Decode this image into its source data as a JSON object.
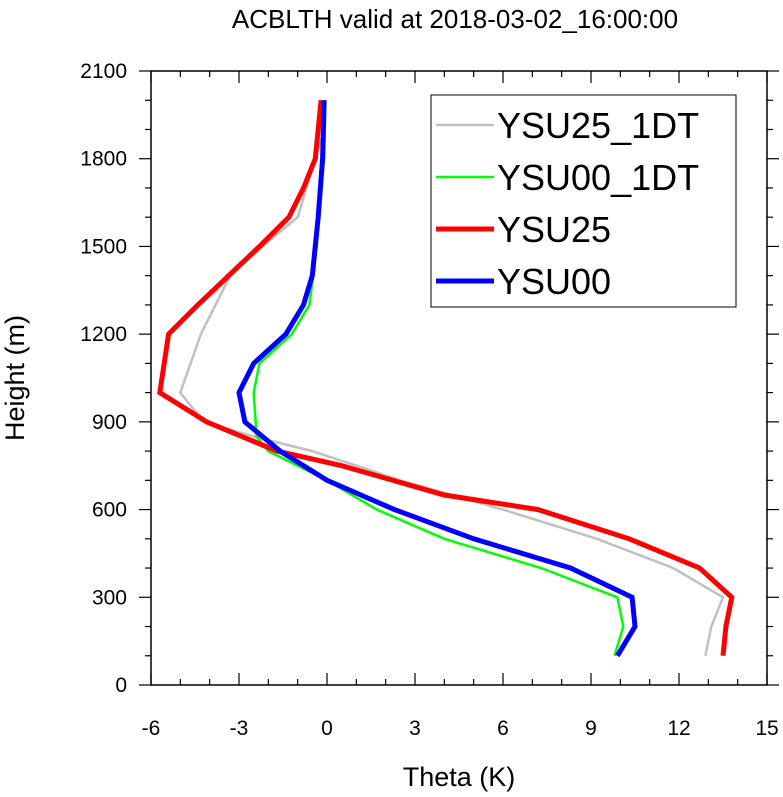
{
  "chart_data": {
    "type": "line",
    "title": "ACBLTH valid at 2018-03-02_16:00:00",
    "xlabel": "Theta (K)",
    "ylabel": "Height (m)",
    "xlim": [
      -6,
      15
    ],
    "ylim": [
      0,
      2100
    ],
    "xticks": [
      -6,
      -3,
      0,
      3,
      6,
      9,
      12,
      15
    ],
    "yticks": [
      0,
      300,
      600,
      900,
      1200,
      1500,
      1800,
      2100
    ],
    "x_minor_step": 1,
    "y_minor_step": 100,
    "legend_position": "top-right",
    "series": [
      {
        "name": "YSU25_1DT",
        "color": "#c0c0c0",
        "width": "thin",
        "x": [
          12.9,
          13.1,
          13.5,
          11.8,
          9.2,
          6.0,
          2.5,
          -0.5,
          -2.5,
          -4.2,
          -5.0,
          -4.3,
          -3.3,
          -2.2,
          -1.0,
          -0.4,
          -0.1,
          -0.05
        ],
        "y": [
          100,
          200,
          300,
          400,
          500,
          600,
          700,
          800,
          850,
          900,
          1000,
          1200,
          1400,
          1500,
          1600,
          1800,
          1900,
          2000
        ]
      },
      {
        "name": "YSU00_1DT",
        "color": "#00ff00",
        "width": "thin",
        "x": [
          9.8,
          10.1,
          9.9,
          7.3,
          4.0,
          1.7,
          0.0,
          -1.0,
          -2.0,
          -2.4,
          -2.5,
          -2.3,
          -1.2,
          -0.6,
          -0.35,
          -0.2,
          -0.1,
          -0.05
        ],
        "y": [
          100,
          200,
          300,
          400,
          500,
          600,
          700,
          750,
          800,
          850,
          1000,
          1100,
          1200,
          1300,
          1500,
          1700,
          1800,
          2000
        ]
      },
      {
        "name": "YSU25",
        "color": "#ff0000",
        "width": "thick",
        "x": [
          13.5,
          13.6,
          13.8,
          12.7,
          10.3,
          7.2,
          4.0,
          0.5,
          -1.7,
          -4.1,
          -5.7,
          -5.4,
          -4.4,
          -2.3,
          -1.3,
          -0.8,
          -0.4,
          -0.2
        ],
        "y": [
          100,
          200,
          300,
          400,
          500,
          600,
          650,
          750,
          800,
          900,
          1000,
          1200,
          1300,
          1500,
          1600,
          1700,
          1800,
          2000
        ]
      },
      {
        "name": "YSU00",
        "color": "#0000ff",
        "width": "thick",
        "x": [
          9.9,
          10.5,
          10.4,
          8.3,
          5.0,
          2.3,
          0.0,
          -1.6,
          -2.8,
          -3.0,
          -2.5,
          -1.4,
          -0.8,
          -0.5,
          -0.3,
          -0.15,
          -0.1
        ],
        "y": [
          100,
          200,
          300,
          400,
          500,
          600,
          700,
          800,
          900,
          1000,
          1100,
          1200,
          1300,
          1400,
          1600,
          1800,
          2000
        ]
      }
    ]
  }
}
